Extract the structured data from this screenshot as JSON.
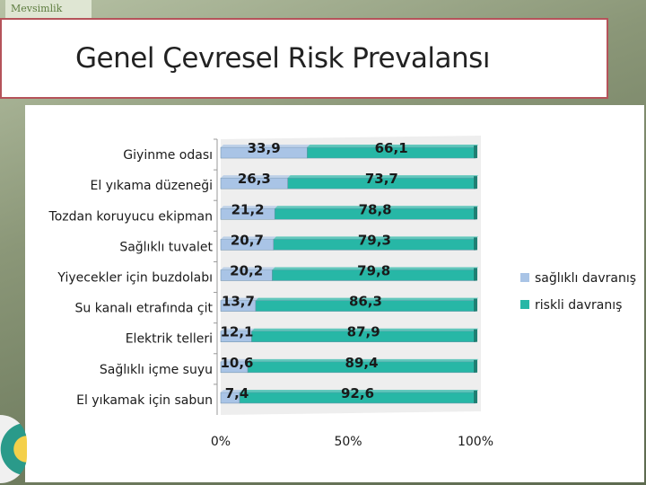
{
  "logo_text": "Mevsimlik",
  "title": "Genel Çevresel Risk Prevalansı",
  "colors": {
    "healthy": "#a9c4e6",
    "risky": "#27b7a6",
    "plot_bg": "#eeeeee",
    "title_border": "#b5535a"
  },
  "chart_data": {
    "type": "bar",
    "orientation": "horizontal",
    "stacked": "percent",
    "title": "",
    "xlabel": "",
    "ylabel": "",
    "xlim": [
      0,
      100
    ],
    "x_ticks": [
      "0%",
      "50%",
      "100%"
    ],
    "legend_position": "right",
    "categories": [
      "Giyinme odası",
      "El yıkama düzeneği",
      "Tozdan koruyucu ekipman",
      "Sağlıklı tuvalet",
      "Yiyecekler için buzdolabı",
      "Su kanalı etrafında çit",
      "Elektrik telleri",
      "Sağlıklı içme suyu",
      "El yıkamak için sabun"
    ],
    "series": [
      {
        "name": "sağlıklı davranış",
        "values": [
          33.9,
          26.3,
          21.2,
          20.7,
          20.2,
          13.7,
          12.1,
          10.6,
          7.4
        ],
        "labels": [
          "33,9",
          "26,3",
          "21,2",
          "20,7",
          "20,2",
          "13,7",
          "12,1",
          "10,6",
          "7,4"
        ]
      },
      {
        "name": "riskli davranış",
        "values": [
          66.1,
          73.7,
          78.8,
          79.3,
          79.8,
          86.3,
          87.9,
          89.4,
          92.6
        ],
        "labels": [
          "66,1",
          "73,7",
          "78,8",
          "79,3",
          "79,8",
          "86,3",
          "87,9",
          "89,4",
          "92,6"
        ]
      }
    ]
  }
}
